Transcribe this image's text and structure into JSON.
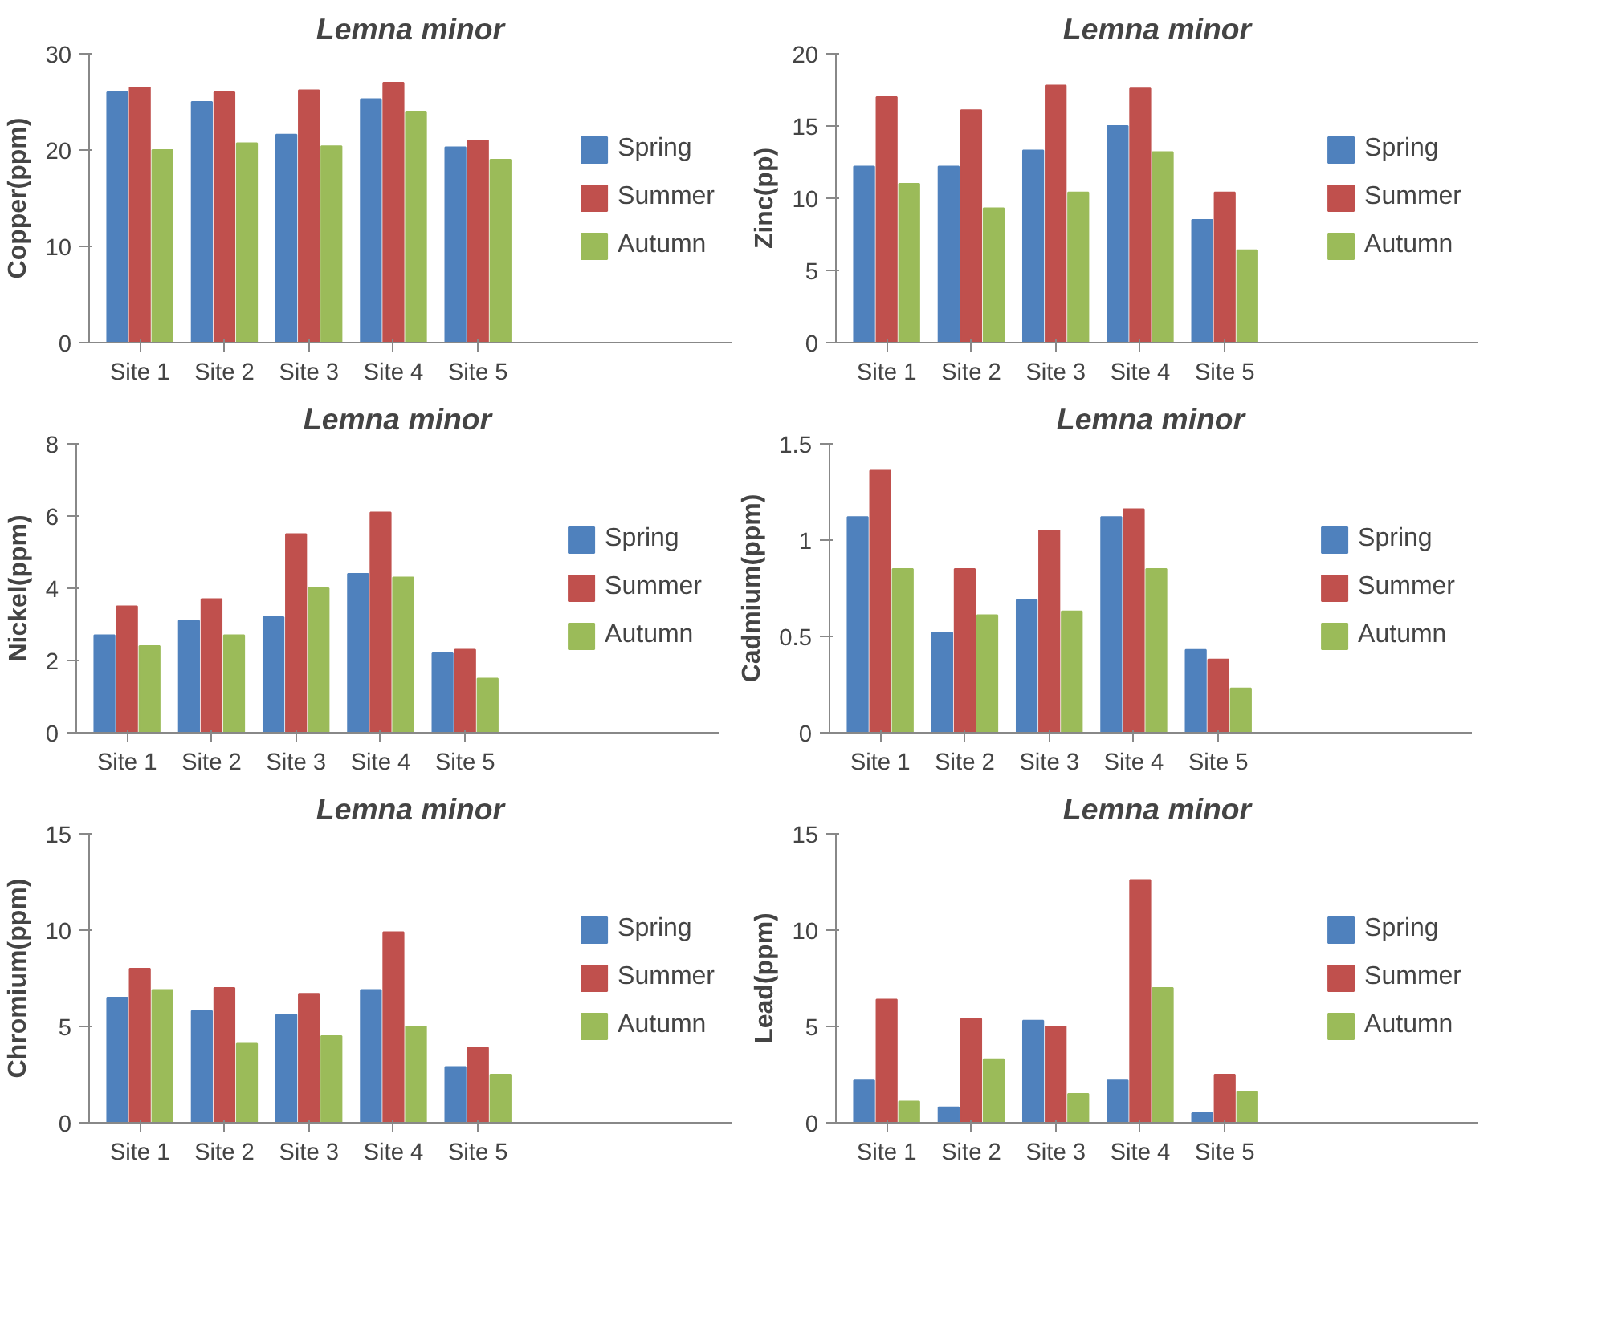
{
  "chart_data": [
    {
      "type": "bar",
      "title": "Lemna minor",
      "ylabel": "Copper(ppm)",
      "categories": [
        "Site 1",
        "Site 2",
        "Site 3",
        "Site 4",
        "Site 5"
      ],
      "ylim": [
        0,
        30
      ],
      "yticks": [
        0,
        10,
        20,
        30
      ],
      "legend": "right",
      "grid": false,
      "series": [
        {
          "name": "Spring",
          "color": "#4f81bd",
          "values": [
            26,
            25,
            21.6,
            25.3,
            20.3
          ]
        },
        {
          "name": "Summer",
          "color": "#c0504d",
          "values": [
            26.5,
            26,
            26.2,
            27,
            21
          ]
        },
        {
          "name": "Autumn",
          "color": "#9bbb59",
          "values": [
            20,
            20.7,
            20.4,
            24,
            19
          ]
        }
      ]
    },
    {
      "type": "bar",
      "title": "Lemna minor",
      "ylabel": "Zinc(pp)",
      "categories": [
        "Site 1",
        "Site 2",
        "Site 3",
        "Site 4",
        "Site 5"
      ],
      "ylim": [
        0,
        20
      ],
      "yticks": [
        0,
        5,
        10,
        15,
        20
      ],
      "legend": "right",
      "grid": false,
      "series": [
        {
          "name": "Spring",
          "color": "#4f81bd",
          "values": [
            12.2,
            12.2,
            13.3,
            15,
            8.5
          ]
        },
        {
          "name": "Summer",
          "color": "#c0504d",
          "values": [
            17,
            16.1,
            17.8,
            17.6,
            10.4
          ]
        },
        {
          "name": "Autumn",
          "color": "#9bbb59",
          "values": [
            11,
            9.3,
            10.4,
            13.2,
            6.4
          ]
        }
      ]
    },
    {
      "type": "bar",
      "title": "Lemna minor",
      "ylabel": "Nickel(ppm)",
      "categories": [
        "Site 1",
        "Site 2",
        "Site 3",
        "Site 4",
        "Site 5"
      ],
      "ylim": [
        0,
        8
      ],
      "yticks": [
        0,
        2,
        4,
        6,
        8
      ],
      "legend": "right",
      "grid": false,
      "series": [
        {
          "name": "Spring",
          "color": "#4f81bd",
          "values": [
            2.7,
            3.1,
            3.2,
            4.4,
            2.2
          ]
        },
        {
          "name": "Summer",
          "color": "#c0504d",
          "values": [
            3.5,
            3.7,
            5.5,
            6.1,
            2.3
          ]
        },
        {
          "name": "Autumn",
          "color": "#9bbb59",
          "values": [
            2.4,
            2.7,
            4,
            4.3,
            1.5
          ]
        }
      ]
    },
    {
      "type": "bar",
      "title": "Lemna minor",
      "ylabel": "Cadmium(ppm)",
      "categories": [
        "Site 1",
        "Site 2",
        "Site 3",
        "Site 4",
        "Site 5"
      ],
      "ylim": [
        0,
        1.5
      ],
      "yticks": [
        0,
        0.5,
        1,
        1.5
      ],
      "legend": "right",
      "grid": false,
      "series": [
        {
          "name": "Spring",
          "color": "#4f81bd",
          "values": [
            1.12,
            0.52,
            0.69,
            1.12,
            0.43
          ]
        },
        {
          "name": "Summer",
          "color": "#c0504d",
          "values": [
            1.36,
            0.85,
            1.05,
            1.16,
            0.38
          ]
        },
        {
          "name": "Autumn",
          "color": "#9bbb59",
          "values": [
            0.85,
            0.61,
            0.63,
            0.85,
            0.23
          ]
        }
      ]
    },
    {
      "type": "bar",
      "title": "Lemna minor",
      "ylabel": "Chromium(ppm)",
      "categories": [
        "Site 1",
        "Site 2",
        "Site 3",
        "Site 4",
        "Site 5"
      ],
      "ylim": [
        0,
        15
      ],
      "yticks": [
        0,
        5,
        10,
        15
      ],
      "legend": "right",
      "grid": false,
      "series": [
        {
          "name": "Spring",
          "color": "#4f81bd",
          "values": [
            6.5,
            5.8,
            5.6,
            6.9,
            2.9
          ]
        },
        {
          "name": "Summer",
          "color": "#c0504d",
          "values": [
            8,
            7,
            6.7,
            9.9,
            3.9
          ]
        },
        {
          "name": "Autumn",
          "color": "#9bbb59",
          "values": [
            6.9,
            4.1,
            4.5,
            5,
            2.5
          ]
        }
      ]
    },
    {
      "type": "bar",
      "title": "Lemna minor",
      "ylabel": "Lead(ppm)",
      "categories": [
        "Site 1",
        "Site 2",
        "Site 3",
        "Site 4",
        "Site 5"
      ],
      "ylim": [
        0,
        15
      ],
      "yticks": [
        0,
        5,
        10,
        15
      ],
      "legend": "right",
      "grid": false,
      "series": [
        {
          "name": "Spring",
          "color": "#4f81bd",
          "values": [
            2.2,
            0.8,
            5.3,
            2.2,
            0.5
          ]
        },
        {
          "name": "Summer",
          "color": "#c0504d",
          "values": [
            6.4,
            5.4,
            5,
            12.6,
            2.5
          ]
        },
        {
          "name": "Autumn",
          "color": "#9bbb59",
          "values": [
            1.1,
            3.3,
            1.5,
            7,
            1.6
          ]
        }
      ]
    }
  ]
}
